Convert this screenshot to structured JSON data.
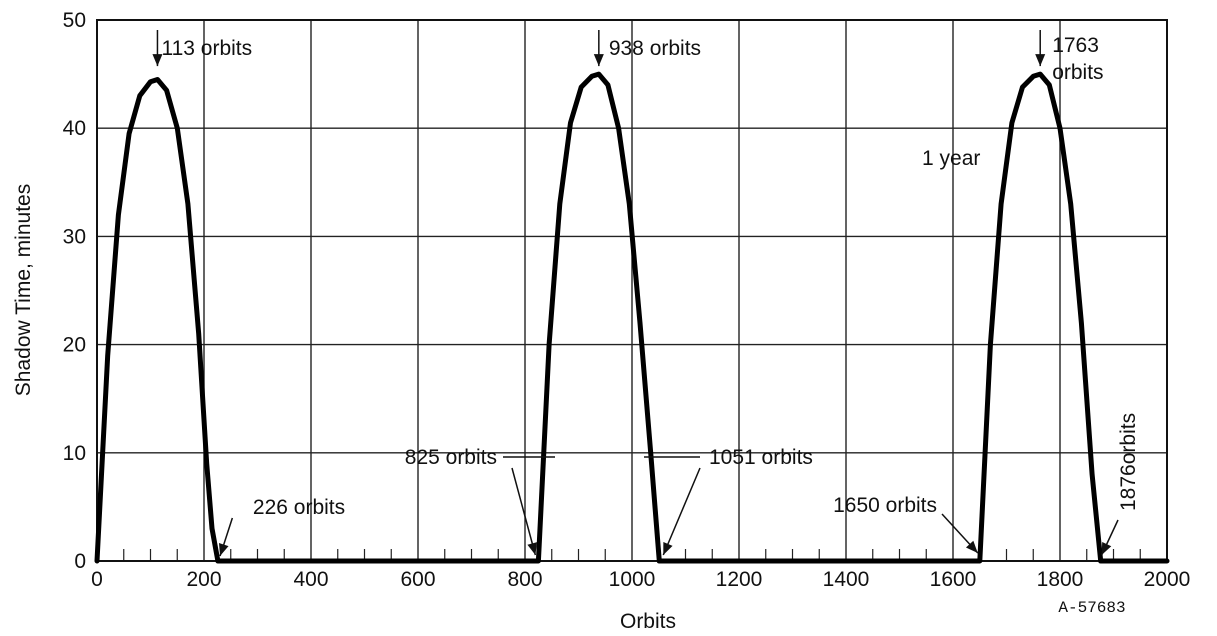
{
  "chart_data": {
    "type": "line",
    "title": "",
    "xlabel": "Orbits",
    "ylabel": "Shadow Time, minutes",
    "xlim": [
      0,
      2000
    ],
    "ylim": [
      0,
      50
    ],
    "x_ticks": [
      0,
      200,
      400,
      600,
      800,
      1000,
      1200,
      1400,
      1600,
      1800,
      2000
    ],
    "y_ticks": [
      0,
      10,
      20,
      30,
      40,
      50
    ],
    "grid": true,
    "legend": "none",
    "series": [
      {
        "x": [
          0,
          20,
          40,
          60,
          80,
          100,
          113,
          130,
          150,
          170,
          190,
          205,
          215,
          226,
          825,
          845,
          865,
          885,
          905,
          925,
          938,
          955,
          975,
          995,
          1015,
          1035,
          1051,
          1650,
          1670,
          1690,
          1710,
          1730,
          1750,
          1763,
          1780,
          1800,
          1820,
          1840,
          1860,
          1876,
          2000
        ],
        "y": [
          0,
          19,
          32,
          39.5,
          43,
          44.3,
          44.5,
          43.5,
          40,
          33,
          21,
          9,
          3,
          0,
          0,
          20,
          33,
          40.5,
          43.8,
          44.8,
          45,
          44,
          40,
          33,
          22,
          10,
          0,
          0,
          20,
          33,
          40.5,
          43.8,
          44.8,
          45,
          44,
          40,
          33,
          22,
          8,
          0,
          0
        ]
      }
    ],
    "annotations": [
      {
        "text": "113 orbits",
        "x": 113,
        "y": 45
      },
      {
        "text": "938 orbits",
        "x": 938,
        "y": 45
      },
      {
        "text": "1763",
        "x": 1763,
        "y": 45
      },
      {
        "text": "orbits",
        "x": 1763,
        "y": 45
      },
      {
        "text": "226 orbits",
        "x": 226,
        "y": 0
      },
      {
        "text": "825 orbits",
        "x": 825,
        "y": 0
      },
      {
        "text": "1051 orbits",
        "x": 1051,
        "y": 0
      },
      {
        "text": "1650 orbits",
        "x": 1650,
        "y": 0
      },
      {
        "text": "1876orbits",
        "x": 1876,
        "y": 0
      },
      {
        "text": "1 year",
        "x": 1825,
        "y": 40
      }
    ]
  },
  "figure_id": "A-57683"
}
